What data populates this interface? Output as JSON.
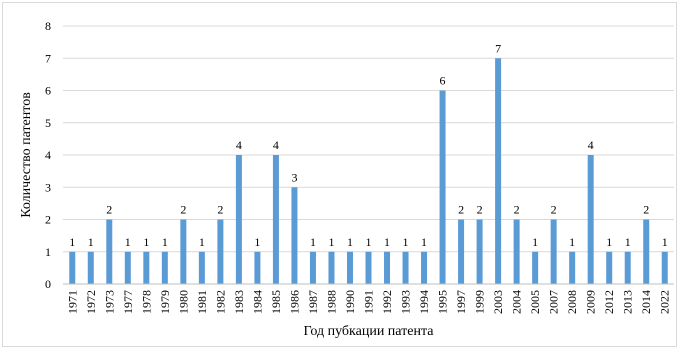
{
  "chart_data": {
    "type": "bar",
    "categories": [
      "1971",
      "1972",
      "1973",
      "1977",
      "1978",
      "1979",
      "1980",
      "1981",
      "1982",
      "1983",
      "1984",
      "1985",
      "1986",
      "1987",
      "1988",
      "1990",
      "1991",
      "1992",
      "1993",
      "1994",
      "1995",
      "1997",
      "1999",
      "2003",
      "2004",
      "2005",
      "2007",
      "2008",
      "2009",
      "2012",
      "2013",
      "2014",
      "2022"
    ],
    "values": [
      1,
      1,
      2,
      1,
      1,
      1,
      2,
      1,
      2,
      4,
      1,
      4,
      3,
      1,
      1,
      1,
      1,
      1,
      1,
      1,
      6,
      2,
      2,
      7,
      2,
      1,
      2,
      1,
      4,
      1,
      1,
      2,
      1
    ],
    "title": "",
    "xlabel": "Год пубкации патента",
    "ylabel": "Количество патентов",
    "ylim": [
      0,
      8
    ],
    "yticks": [
      0,
      1,
      2,
      3,
      4,
      5,
      6,
      7,
      8
    ],
    "grid": true,
    "data_labels": true,
    "legend": "none",
    "colors": {
      "bar": "#5b9bd5",
      "grid": "#d9d9d9",
      "axis": "#bfbfbf"
    }
  }
}
